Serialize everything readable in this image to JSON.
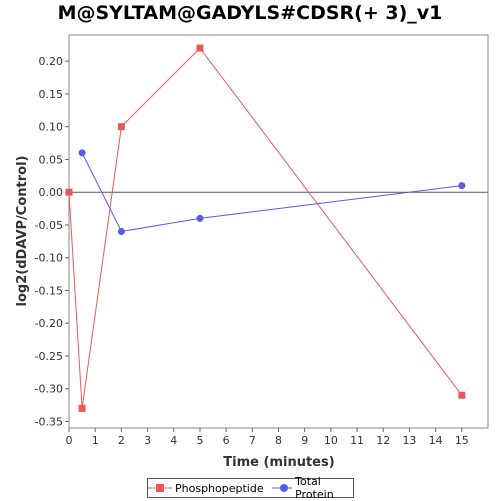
{
  "chart_data": {
    "type": "line",
    "title": "M@SYLTAM@GADYLS#CDSR(+ 3)_v1",
    "xlabel": "Time (minutes)",
    "ylabel": "log2(dDAVP/Control)",
    "xlim": [
      0,
      16
    ],
    "ylim": [
      -0.36,
      0.24
    ],
    "x_ticks": [
      0,
      1,
      2,
      3,
      4,
      5,
      6,
      7,
      8,
      9,
      10,
      11,
      12,
      13,
      14,
      15
    ],
    "y_ticks": [
      -0.35,
      -0.3,
      -0.25,
      -0.2,
      -0.15,
      -0.1,
      -0.05,
      0.0,
      0.05,
      0.1,
      0.15,
      0.2
    ],
    "y_tick_labels": [
      "-0.35",
      "-0.30",
      "-0.25",
      "-0.20",
      "-0.15",
      "-0.10",
      "-0.05",
      "0.00",
      "0.05",
      "0.10",
      "0.15",
      "0.20"
    ],
    "zero_line": true,
    "grid": false,
    "legend_position": "bottom",
    "series": [
      {
        "name": "Phosphopeptide",
        "color": "#e85a5a",
        "marker": "square",
        "x": [
          0,
          0.5,
          2,
          5,
          15
        ],
        "values": [
          0.0,
          -0.33,
          0.1,
          0.22,
          -0.31
        ]
      },
      {
        "name": "Total Protein",
        "color": "#5a5ae8",
        "marker": "circle",
        "x": [
          0.5,
          2,
          5,
          15
        ],
        "values": [
          0.06,
          -0.06,
          -0.04,
          0.01
        ]
      }
    ]
  }
}
